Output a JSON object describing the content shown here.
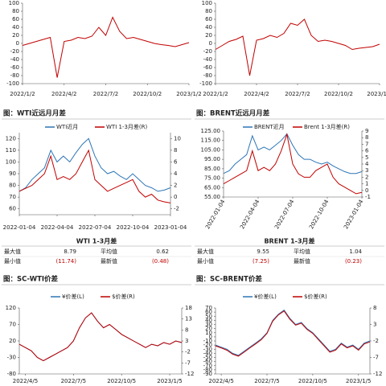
{
  "chart_data": [
    {
      "type": "line",
      "categories": [
        "2022/1/2",
        null,
        null,
        null,
        null,
        null,
        "2022/4/2",
        null,
        null,
        null,
        null,
        null,
        "2022/7/2",
        null,
        null,
        null,
        null,
        null,
        "2022/10/2",
        null,
        null,
        null,
        null,
        null,
        "2023/1/2"
      ],
      "series": [
        {
          "color": "#c00000",
          "values": [
            -5,
            0,
            5,
            10,
            15,
            -85,
            5,
            8,
            15,
            12,
            18,
            40,
            20,
            65,
            30,
            12,
            15,
            10,
            5,
            0,
            -3,
            -5,
            -8,
            -3,
            2
          ]
        }
      ],
      "ylim": [
        -100,
        100
      ],
      "yticks": [
        100,
        80,
        60,
        40,
        20,
        0,
        -20,
        -40,
        -60,
        -80,
        -100
      ]
    },
    {
      "type": "line",
      "categories": [
        "2022/1/2",
        null,
        null,
        null,
        null,
        null,
        "2022/4/2",
        null,
        null,
        null,
        null,
        null,
        "2022/7/2",
        null,
        null,
        null,
        null,
        null,
        "2022/10/2",
        null,
        null,
        null,
        null,
        null,
        "2023/1/2"
      ],
      "series": [
        {
          "color": "#c00000",
          "values": [
            -15,
            -5,
            5,
            10,
            18,
            -80,
            8,
            12,
            20,
            15,
            25,
            50,
            45,
            60,
            20,
            5,
            8,
            5,
            0,
            -5,
            -15,
            -12,
            -10,
            -8,
            -2
          ]
        }
      ],
      "ylim": [
        -100,
        100
      ],
      "yticks": [
        100,
        80,
        60,
        40,
        20,
        0,
        -20,
        -40,
        -60,
        -80,
        -100
      ]
    },
    {
      "type": "line",
      "title": "图：WTI近远月月差",
      "categories": [
        "2022-01-04",
        null,
        null,
        null,
        null,
        null,
        "2022-04-04",
        null,
        null,
        null,
        null,
        null,
        "2022-07-04",
        null,
        null,
        null,
        null,
        null,
        "2022-10-04",
        null,
        null,
        null,
        null,
        null,
        "2023-01-04"
      ],
      "series": [
        {
          "name": "WTI近月",
          "color": "#2e75b6",
          "values": [
            75,
            78,
            85,
            90,
            95,
            110,
            100,
            105,
            100,
            108,
            115,
            120,
            105,
            95,
            90,
            92,
            88,
            85,
            90,
            85,
            80,
            78,
            75,
            76,
            78
          ]
        },
        {
          "name": "WTI 1-3月差(R)",
          "color": "#c00000",
          "axis": "y2",
          "values": [
            1,
            1.5,
            2,
            3,
            4,
            7,
            3,
            3.5,
            3,
            4,
            6,
            8,
            3,
            2,
            1,
            1.5,
            2,
            2.5,
            3,
            1,
            0,
            0.5,
            -0.5,
            -0.8,
            -1
          ]
        }
      ],
      "ylim": [
        55,
        125
      ],
      "yticks": [
        120,
        110,
        100,
        90,
        80,
        70,
        60
      ],
      "y2lim": [
        -3,
        11
      ],
      "y2ticks": [
        10,
        8,
        6,
        4,
        2,
        0,
        -2
      ]
    },
    {
      "type": "line",
      "title": "图：BRENT近远月月差",
      "rotate_x_labels": true,
      "categories": [
        "2022-01-04",
        null,
        null,
        null,
        null,
        null,
        "2022-04-04",
        null,
        null,
        null,
        null,
        null,
        "2022-07-04",
        null,
        null,
        null,
        null,
        null,
        "2022-10-04",
        null,
        null,
        null,
        null,
        null,
        "2023-01-04"
      ],
      "series": [
        {
          "name": "BRENT近月",
          "color": "#2e75b6",
          "values": [
            80,
            83,
            90,
            95,
            100,
            120,
            105,
            108,
            105,
            110,
            115,
            122,
            110,
            100,
            95,
            95,
            92,
            90,
            92,
            88,
            85,
            82,
            80,
            80,
            82
          ]
        },
        {
          "name": "Brent 1-3月差(R)",
          "color": "#c00000",
          "axis": "y2",
          "values": [
            1,
            1.5,
            2,
            2.5,
            3,
            6,
            3,
            3.5,
            3,
            4,
            6,
            8.5,
            4,
            2.5,
            2,
            2,
            3,
            3.5,
            4,
            2,
            1,
            0.5,
            0,
            -0.5,
            -0.3
          ]
        }
      ],
      "ylim": [
        55,
        125
      ],
      "yticks": [
        {
          "value": 125,
          "label": "125.00"
        },
        {
          "value": 115,
          "label": "115.00"
        },
        {
          "value": 105,
          "label": "105.00"
        },
        {
          "value": 95,
          "label": "95.00"
        },
        {
          "value": 85,
          "label": "85.00"
        },
        {
          "value": 75,
          "label": "75.00"
        },
        {
          "value": 65,
          "label": "65.00"
        },
        {
          "value": 55,
          "label": "55.00"
        }
      ],
      "y2lim": [
        -1,
        9
      ],
      "y2ticks": [
        9,
        8,
        7,
        6,
        5,
        4,
        3,
        2,
        1,
        0,
        -1
      ]
    },
    {
      "type": "line",
      "title": "图：SC-WTI价差",
      "categories": [
        null,
        "2022/4/5",
        null,
        null,
        null,
        null,
        null,
        null,
        null,
        "2022/7/5",
        null,
        null,
        null,
        null,
        null,
        null,
        null,
        "2022/10/5",
        null,
        null,
        null,
        null,
        null,
        null,
        null,
        "2023/1/5",
        null,
        null
      ],
      "series": [
        {
          "name": "¥价差(L)",
          "color": "#2e75b6",
          "values": [
            10,
            0,
            -10,
            -30,
            -40,
            -30,
            -20,
            -10,
            0,
            20,
            60,
            90,
            105,
            80,
            60,
            70,
            55,
            40,
            30,
            20,
            10,
            0,
            10,
            5,
            15,
            10,
            20,
            15
          ]
        },
        {
          "name": "$价差(R)",
          "color": "#c00000",
          "axis": "y2",
          "values": [
            1.5,
            0,
            -1.5,
            -4.5,
            -6,
            -4.5,
            -3,
            -1.5,
            0,
            3,
            9,
            13.5,
            15.8,
            12,
            9,
            10.5,
            8.3,
            6,
            4.5,
            3,
            1.5,
            0,
            1.5,
            0.8,
            2.3,
            1.5,
            3,
            2.3
          ]
        }
      ],
      "ylim": [
        -80,
        120
      ],
      "yticks": [
        120,
        70,
        20,
        -30,
        -80
      ],
      "y2lim": [
        -12,
        18
      ],
      "y2ticks": [
        18,
        13,
        8,
        3,
        -2,
        -7,
        -12
      ]
    },
    {
      "type": "line",
      "title": "图：SC-BRENT价差",
      "categories": [
        null,
        "2022/4/5",
        null,
        null,
        null,
        null,
        null,
        null,
        null,
        "2022/7/5",
        null,
        null,
        null,
        null,
        null,
        null,
        null,
        "2022/10/5",
        null,
        null,
        null,
        null,
        null,
        null,
        null,
        "2023/1/5",
        null,
        null
      ],
      "series": [
        {
          "name": "¥价差(L)",
          "color": "#2e75b6",
          "values": [
            -20,
            -25,
            -30,
            -40,
            -45,
            -35,
            -25,
            -15,
            -5,
            10,
            40,
            55,
            65,
            45,
            30,
            35,
            20,
            10,
            -5,
            -20,
            -35,
            -30,
            -15,
            -25,
            -20,
            -30,
            -15,
            -10
          ]
        },
        {
          "name": "$价差(R)",
          "color": "#c00000",
          "axis": "y2",
          "values": [
            -3.5,
            -4.1,
            -4.8,
            -6,
            -6.6,
            -5.4,
            -4.1,
            -2.9,
            -1.6,
            0.3,
            4,
            5.9,
            7.1,
            4.6,
            2.8,
            3.4,
            1.5,
            0.3,
            -1.6,
            -3.5,
            -5.4,
            -4.8,
            -2.9,
            -4.1,
            -3.5,
            -4.8,
            -2.9,
            -2.3
          ]
        }
      ],
      "ylim": [
        -90,
        70
      ],
      "yticks": [
        70,
        60,
        50,
        40,
        30,
        20,
        10,
        0,
        -10,
        -20,
        -30,
        -40,
        -50,
        -60,
        -70,
        -80,
        -90
      ],
      "y2lim": [
        -12,
        8
      ],
      "y2ticks": [
        8,
        3,
        -2,
        -7,
        -12
      ]
    }
  ],
  "tables": [
    {
      "title": "WTI 1-3月差",
      "rows": [
        [
          "最大值",
          "8.79",
          "平均值",
          "0.62"
        ],
        [
          "最小值",
          "(11.74)",
          "最新值",
          "(0.48)"
        ]
      ]
    },
    {
      "title": "BRENT 1-3月差",
      "rows": [
        [
          "最大值",
          "9.55",
          "平均值",
          "1.04"
        ],
        [
          "最小值",
          "(7.25)",
          "最新值",
          "(0.23)"
        ]
      ]
    }
  ]
}
